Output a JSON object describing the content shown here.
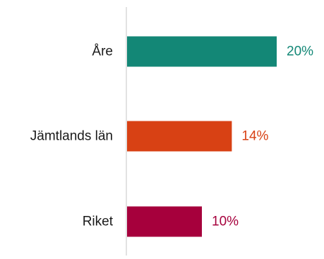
{
  "chart_data": {
    "type": "bar",
    "orientation": "horizontal",
    "categories": [
      "Åre",
      "Jämtlands län",
      "Riket"
    ],
    "values": [
      20,
      14,
      10
    ],
    "value_labels": [
      "20%",
      "14%",
      "10%"
    ],
    "unit": "%",
    "bar_colors": [
      "#138776",
      "#D84114",
      "#A6003C"
    ],
    "xlim": [
      0,
      29.5
    ],
    "grid": false,
    "legend": "none"
  }
}
